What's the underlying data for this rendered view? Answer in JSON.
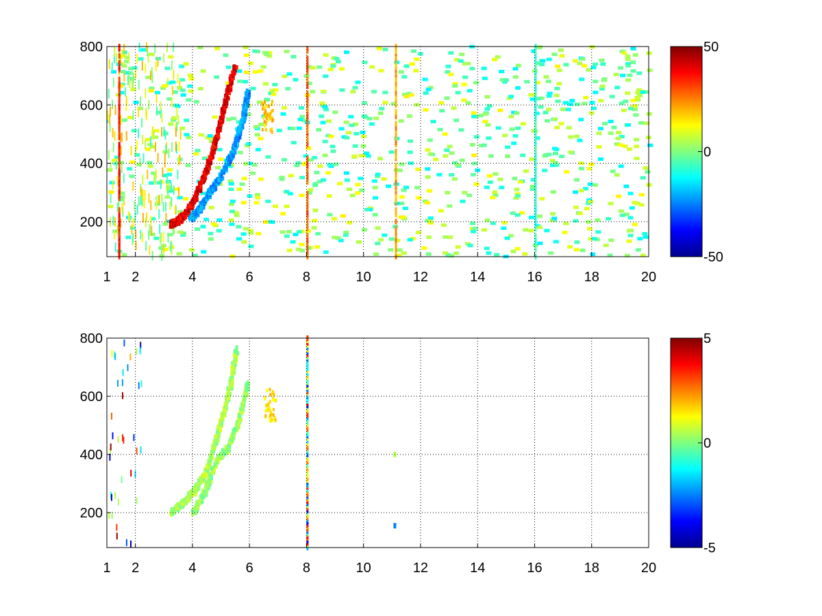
{
  "chart_data": [
    {
      "type": "heatmap",
      "title": "",
      "xlabel": "",
      "ylabel": "",
      "xlim": [
        1,
        20
      ],
      "ylim": [
        80,
        800
      ],
      "x_ticks": [
        1,
        2,
        4,
        6,
        8,
        10,
        12,
        14,
        16,
        18,
        20
      ],
      "x_tick_labels": [
        "1",
        "2",
        "4",
        "6",
        "8",
        "10",
        "12",
        "14",
        "16",
        "18",
        "20"
      ],
      "y_ticks": [
        200,
        400,
        600,
        800
      ],
      "y_tick_labels": [
        "200",
        "400",
        "600",
        "800"
      ],
      "grid": true,
      "colormap": "jet",
      "clim": [
        -50,
        50
      ],
      "colorbar_ticks": [
        50,
        0,
        -50
      ],
      "colorbar_tick_labels": [
        "50",
        "0",
        "-50"
      ],
      "features": [
        {
          "kind": "curve",
          "points": [
            [
              3.2,
              190
            ],
            [
              3.5,
              205
            ],
            [
              3.8,
              235
            ],
            [
              4.1,
              290
            ],
            [
              4.4,
              360
            ],
            [
              4.7,
              450
            ],
            [
              4.95,
              540
            ],
            [
              5.2,
              640
            ],
            [
              5.45,
              730
            ]
          ],
          "value": 40
        },
        {
          "kind": "curve",
          "points": [
            [
              3.9,
              210
            ],
            [
              4.2,
              240
            ],
            [
              4.5,
              290
            ],
            [
              4.8,
              330
            ],
            [
              5.2,
              400
            ],
            [
              5.5,
              470
            ],
            [
              5.75,
              560
            ],
            [
              5.9,
              640
            ]
          ],
          "value": -22
        },
        {
          "kind": "curve",
          "points": [
            [
              5.5,
              470
            ],
            [
              5.75,
              560
            ],
            [
              5.9,
              640
            ]
          ],
          "value": -22
        },
        {
          "kind": "blob",
          "center": [
            6.6,
            560
          ],
          "value": 18
        },
        {
          "kind": "vertical-line",
          "x": 1.4,
          "value": 35
        },
        {
          "kind": "vertical-line",
          "x": 8.0,
          "value": 28
        },
        {
          "kind": "vertical-line",
          "x": 11.1,
          "value": 22
        },
        {
          "kind": "vertical-line",
          "x": 16.0,
          "value": -8
        }
      ]
    },
    {
      "type": "heatmap",
      "title": "",
      "xlabel": "",
      "ylabel": "",
      "xlim": [
        1,
        20
      ],
      "ylim": [
        80,
        800
      ],
      "x_ticks": [
        1,
        2,
        4,
        6,
        8,
        10,
        12,
        14,
        16,
        18,
        20
      ],
      "x_tick_labels": [
        "1",
        "2",
        "4",
        "6",
        "8",
        "10",
        "12",
        "14",
        "16",
        "18",
        "20"
      ],
      "y_ticks": [
        200,
        400,
        600,
        800
      ],
      "y_tick_labels": [
        "200",
        "400",
        "600",
        "800"
      ],
      "grid": true,
      "colormap": "jet",
      "clim": [
        -5,
        5
      ],
      "colorbar_ticks": [
        5,
        0,
        -5
      ],
      "colorbar_tick_labels": [
        "5",
        "0",
        "-5"
      ],
      "features": [
        {
          "kind": "curve",
          "points": [
            [
              3.2,
              200
            ],
            [
              3.6,
              230
            ],
            [
              4.0,
              270
            ],
            [
              4.4,
              330
            ],
            [
              4.7,
              420
            ],
            [
              5.0,
              520
            ],
            [
              5.3,
              640
            ],
            [
              5.5,
              760
            ]
          ],
          "value": 0.4
        },
        {
          "kind": "curve",
          "points": [
            [
              4.0,
              200
            ],
            [
              4.4,
              270
            ],
            [
              4.8,
              380
            ],
            [
              5.2,
              420
            ],
            [
              5.6,
              520
            ],
            [
              5.9,
              640
            ]
          ],
          "value": 0.3
        },
        {
          "kind": "blob",
          "center": [
            6.7,
            570
          ],
          "value": 1.6
        },
        {
          "kind": "vertical-line",
          "x": 8.0,
          "value": 0.0,
          "noisy": true
        },
        {
          "kind": "spot",
          "center": [
            11.05,
            155
          ],
          "value": -2.5
        },
        {
          "kind": "spot",
          "center": [
            11.05,
            400
          ],
          "value": 0.5
        }
      ]
    }
  ]
}
